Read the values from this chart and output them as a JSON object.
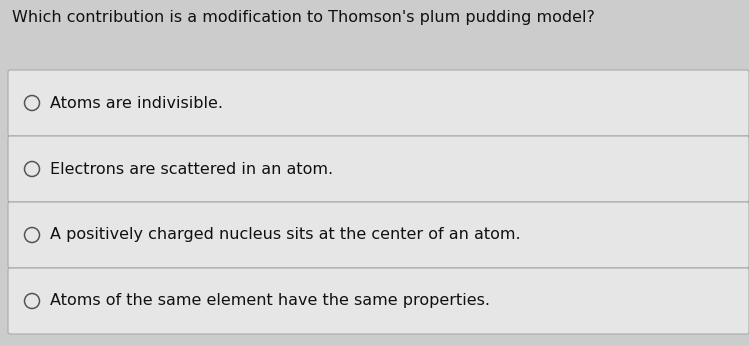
{
  "question": "Which contribution is a modification to Thomson's plum pudding model?",
  "options": [
    "Atoms are indivisible.",
    "Electrons are scattered in an atom.",
    "A positively charged nucleus sits at the center of an atom.",
    "Atoms of the same element have the same properties."
  ],
  "bg_color": "#cccccc",
  "box_color": "#e6e6e6",
  "box_border_color": "#aaaaaa",
  "question_color": "#111111",
  "option_color": "#111111",
  "question_fontsize": 11.5,
  "option_fontsize": 11.5,
  "circle_color": "#555555",
  "fig_width": 7.49,
  "fig_height": 3.46,
  "dpi": 100
}
